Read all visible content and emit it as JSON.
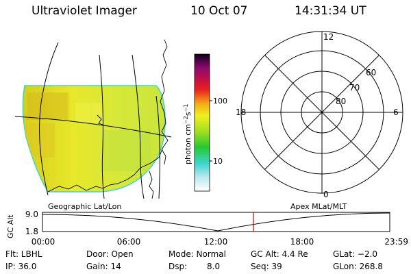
{
  "header": {
    "title": "Ultraviolet Imager",
    "date": "10 Oct 07",
    "time": "14:31:34 UT"
  },
  "colorbar": {
    "label_main": "photon cm",
    "exp_1": "−2",
    "mid": "s",
    "exp_2": "−1",
    "ticks": [
      "100",
      "10"
    ]
  },
  "polar": {
    "mlt_labels": [
      "12",
      "6",
      "0",
      "18"
    ],
    "lat_labels": [
      "60",
      "70",
      "80"
    ]
  },
  "timeline": {
    "left_title": "Geographic Lat/Lon",
    "right_title": "Apex MLat/MLT",
    "y_axis_label": "GC Alt",
    "y_ticks": [
      "9.0",
      "1.8"
    ],
    "x_ticks": [
      "00:00",
      "06:00",
      "12:00",
      "18:00",
      "23:59"
    ],
    "marker_color": "#cc0000"
  },
  "info": {
    "filter": "Flt: LBHL",
    "door": "Door: Open",
    "mode": "Mode: Normal",
    "gc_alt": "GC Alt: 4.4 Re",
    "glat": "GLat: −2.0",
    "ip": "IP: 36.0",
    "gain": "Gain: 14",
    "dsp_label": "Dsp:",
    "dsp_value": "8.0",
    "seq": "Seq: 39",
    "glon": "GLon: 268.8"
  }
}
